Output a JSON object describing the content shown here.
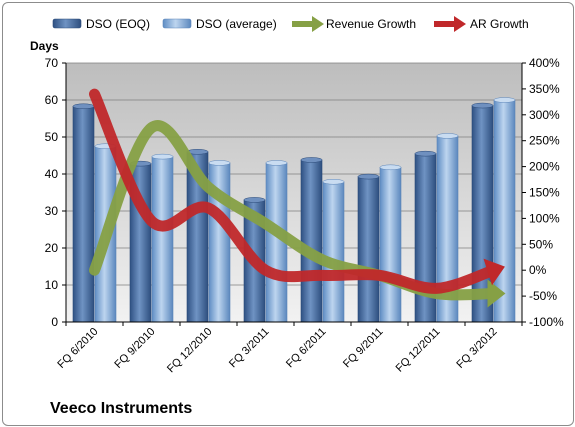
{
  "company": "Veeco Instruments",
  "chart_data": {
    "type": "bar",
    "categories": [
      "FQ 6/2010",
      "FQ 9/2010",
      "FQ 12/2010",
      "FQ 3/2011",
      "FQ 6/2011",
      "FQ 9/2011",
      "FQ 12/2011",
      "FQ 3/2012"
    ],
    "series": [
      {
        "name": "DSO (EOQ)",
        "type": "bar",
        "axis": "left",
        "color": "#4a6d9e",
        "values": [
          58.3,
          42.8,
          46.0,
          33.0,
          43.8,
          39.3,
          45.5,
          58.5
        ]
      },
      {
        "name": "DSO (average)",
        "type": "bar",
        "axis": "left",
        "color": "#8eb2d8",
        "values": [
          47.5,
          44.7,
          43.0,
          43.0,
          37.9,
          41.8,
          50.3,
          60.0
        ]
      },
      {
        "name": "Revenue Growth",
        "type": "line",
        "axis": "right",
        "color": "#86a045",
        "values": [
          0,
          275,
          160,
          90,
          20,
          -10,
          -45,
          -45
        ]
      },
      {
        "name": "AR Growth",
        "type": "line",
        "axis": "right",
        "color": "#c0282a",
        "values": [
          340,
          95,
          120,
          0,
          -10,
          -10,
          -35,
          0
        ]
      }
    ],
    "ylabel": "Days",
    "ylim": [
      0,
      70
    ],
    "yticks": [
      "0",
      "10",
      "20",
      "30",
      "40",
      "50",
      "60",
      "70"
    ],
    "y2lim": [
      -100,
      400
    ],
    "y2ticks": [
      "-100%",
      "-50%",
      "0%",
      "50%",
      "100%",
      "150%",
      "200%",
      "250%",
      "300%",
      "350%",
      "400%"
    ],
    "legend": "top",
    "grid": true
  }
}
